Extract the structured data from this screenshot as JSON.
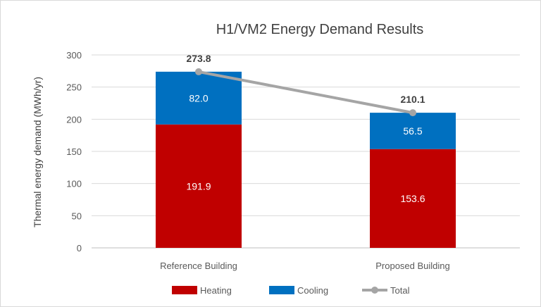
{
  "chart_data": {
    "type": "bar",
    "stacked": true,
    "title": "H1/VM2 Energy Demand Results",
    "ylabel": "Thermal energy demand (MWh/yr)",
    "xlabel": "",
    "ylim": [
      0,
      300
    ],
    "yticks": [
      0,
      50,
      100,
      150,
      200,
      250,
      300
    ],
    "grid": true,
    "legend": "bottom",
    "categories": [
      "Reference Building",
      "Proposed Building"
    ],
    "series": [
      {
        "name": "Heating",
        "type": "bar",
        "color": "#c00000",
        "values": [
          191.9,
          153.6
        ],
        "labels": [
          "191.9",
          "153.6"
        ]
      },
      {
        "name": "Cooling",
        "type": "bar",
        "color": "#0070c0",
        "values": [
          82.0,
          56.5
        ],
        "labels": [
          "82.0",
          "56.5"
        ]
      },
      {
        "name": "Total",
        "type": "line",
        "color": "#a5a5a5",
        "values": [
          273.8,
          210.1
        ],
        "labels": [
          "273.8",
          "210.1"
        ]
      }
    ]
  }
}
